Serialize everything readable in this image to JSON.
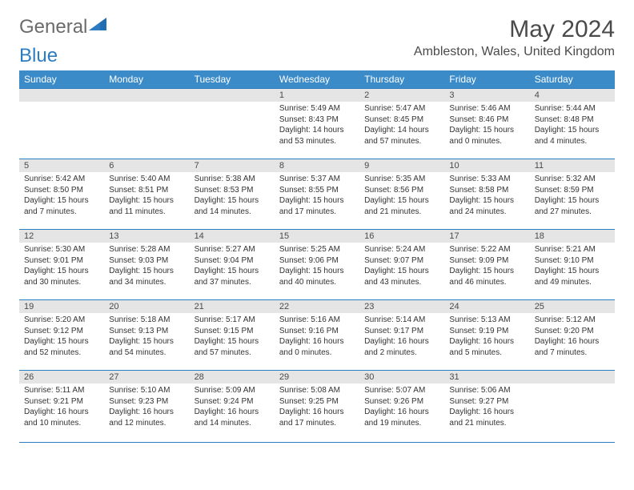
{
  "brand": {
    "general": "General",
    "blue": "Blue"
  },
  "title": "May 2024",
  "location": "Ambleston, Wales, United Kingdom",
  "colors": {
    "header_bg": "#3b8bc9",
    "header_text": "#ffffff",
    "daynum_bg": "#e5e5e5",
    "border": "#2d7cc1",
    "text": "#333333",
    "title_text": "#4a4a4a"
  },
  "weekdays": [
    "Sunday",
    "Monday",
    "Tuesday",
    "Wednesday",
    "Thursday",
    "Friday",
    "Saturday"
  ],
  "weeks": [
    [
      null,
      null,
      null,
      {
        "n": "1",
        "sr": "5:49 AM",
        "ss": "8:43 PM",
        "dl": "14 hours and 53 minutes."
      },
      {
        "n": "2",
        "sr": "5:47 AM",
        "ss": "8:45 PM",
        "dl": "14 hours and 57 minutes."
      },
      {
        "n": "3",
        "sr": "5:46 AM",
        "ss": "8:46 PM",
        "dl": "15 hours and 0 minutes."
      },
      {
        "n": "4",
        "sr": "5:44 AM",
        "ss": "8:48 PM",
        "dl": "15 hours and 4 minutes."
      }
    ],
    [
      {
        "n": "5",
        "sr": "5:42 AM",
        "ss": "8:50 PM",
        "dl": "15 hours and 7 minutes."
      },
      {
        "n": "6",
        "sr": "5:40 AM",
        "ss": "8:51 PM",
        "dl": "15 hours and 11 minutes."
      },
      {
        "n": "7",
        "sr": "5:38 AM",
        "ss": "8:53 PM",
        "dl": "15 hours and 14 minutes."
      },
      {
        "n": "8",
        "sr": "5:37 AM",
        "ss": "8:55 PM",
        "dl": "15 hours and 17 minutes."
      },
      {
        "n": "9",
        "sr": "5:35 AM",
        "ss": "8:56 PM",
        "dl": "15 hours and 21 minutes."
      },
      {
        "n": "10",
        "sr": "5:33 AM",
        "ss": "8:58 PM",
        "dl": "15 hours and 24 minutes."
      },
      {
        "n": "11",
        "sr": "5:32 AM",
        "ss": "8:59 PM",
        "dl": "15 hours and 27 minutes."
      }
    ],
    [
      {
        "n": "12",
        "sr": "5:30 AM",
        "ss": "9:01 PM",
        "dl": "15 hours and 30 minutes."
      },
      {
        "n": "13",
        "sr": "5:28 AM",
        "ss": "9:03 PM",
        "dl": "15 hours and 34 minutes."
      },
      {
        "n": "14",
        "sr": "5:27 AM",
        "ss": "9:04 PM",
        "dl": "15 hours and 37 minutes."
      },
      {
        "n": "15",
        "sr": "5:25 AM",
        "ss": "9:06 PM",
        "dl": "15 hours and 40 minutes."
      },
      {
        "n": "16",
        "sr": "5:24 AM",
        "ss": "9:07 PM",
        "dl": "15 hours and 43 minutes."
      },
      {
        "n": "17",
        "sr": "5:22 AM",
        "ss": "9:09 PM",
        "dl": "15 hours and 46 minutes."
      },
      {
        "n": "18",
        "sr": "5:21 AM",
        "ss": "9:10 PM",
        "dl": "15 hours and 49 minutes."
      }
    ],
    [
      {
        "n": "19",
        "sr": "5:20 AM",
        "ss": "9:12 PM",
        "dl": "15 hours and 52 minutes."
      },
      {
        "n": "20",
        "sr": "5:18 AM",
        "ss": "9:13 PM",
        "dl": "15 hours and 54 minutes."
      },
      {
        "n": "21",
        "sr": "5:17 AM",
        "ss": "9:15 PM",
        "dl": "15 hours and 57 minutes."
      },
      {
        "n": "22",
        "sr": "5:16 AM",
        "ss": "9:16 PM",
        "dl": "16 hours and 0 minutes."
      },
      {
        "n": "23",
        "sr": "5:14 AM",
        "ss": "9:17 PM",
        "dl": "16 hours and 2 minutes."
      },
      {
        "n": "24",
        "sr": "5:13 AM",
        "ss": "9:19 PM",
        "dl": "16 hours and 5 minutes."
      },
      {
        "n": "25",
        "sr": "5:12 AM",
        "ss": "9:20 PM",
        "dl": "16 hours and 7 minutes."
      }
    ],
    [
      {
        "n": "26",
        "sr": "5:11 AM",
        "ss": "9:21 PM",
        "dl": "16 hours and 10 minutes."
      },
      {
        "n": "27",
        "sr": "5:10 AM",
        "ss": "9:23 PM",
        "dl": "16 hours and 12 minutes."
      },
      {
        "n": "28",
        "sr": "5:09 AM",
        "ss": "9:24 PM",
        "dl": "16 hours and 14 minutes."
      },
      {
        "n": "29",
        "sr": "5:08 AM",
        "ss": "9:25 PM",
        "dl": "16 hours and 17 minutes."
      },
      {
        "n": "30",
        "sr": "5:07 AM",
        "ss": "9:26 PM",
        "dl": "16 hours and 19 minutes."
      },
      {
        "n": "31",
        "sr": "5:06 AM",
        "ss": "9:27 PM",
        "dl": "16 hours and 21 minutes."
      },
      null
    ]
  ],
  "labels": {
    "sunrise": "Sunrise:",
    "sunset": "Sunset:",
    "daylight": "Daylight:"
  }
}
